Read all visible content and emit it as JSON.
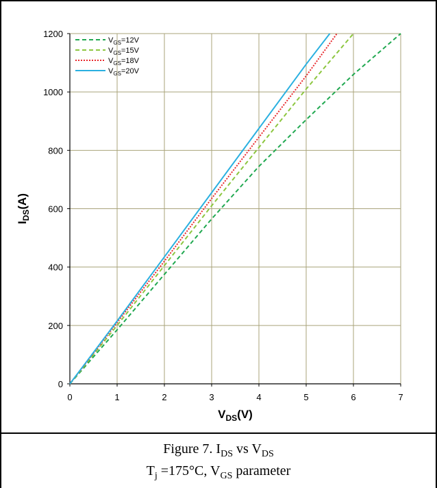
{
  "chart_data": {
    "type": "line",
    "xlabel": {
      "main": "V",
      "sub": "DS",
      "unit": "(V)"
    },
    "ylabel": {
      "main": "I",
      "sub": "DS",
      "unit": "(A)"
    },
    "xlim": [
      0,
      7
    ],
    "ylim": [
      0,
      1200
    ],
    "xticks": [
      "0",
      "1",
      "2",
      "3",
      "4",
      "5",
      "6",
      "7"
    ],
    "yticks": [
      "0",
      "200",
      "400",
      "600",
      "800",
      "1000",
      "1200"
    ],
    "grid": true,
    "legend_position": "top-left",
    "series": [
      {
        "name": "V_GS=12V",
        "label_main": "V",
        "label_sub": "GS",
        "label_rest": "=12V",
        "color": "#20a850",
        "dash": "dashed",
        "x": [
          0,
          1,
          2,
          3,
          4,
          5,
          6,
          7
        ],
        "y": [
          0,
          185,
          375,
          565,
          745,
          905,
          1060,
          1200
        ]
      },
      {
        "name": "V_GS=15V",
        "label_main": "V",
        "label_sub": "GS",
        "label_rest": "=15V",
        "color": "#8cc63f",
        "dash": "dashed",
        "x": [
          0,
          1,
          2,
          3,
          4,
          5,
          6
        ],
        "y": [
          0,
          200,
          405,
          610,
          810,
          1010,
          1200
        ]
      },
      {
        "name": "V_GS=18V",
        "label_main": "V",
        "label_sub": "GS",
        "label_rest": "=18V",
        "color": "#e8262a",
        "dash": "dotted",
        "x": [
          0,
          1,
          2,
          3,
          4,
          5,
          5.65
        ],
        "y": [
          0,
          210,
          420,
          635,
          845,
          1055,
          1200
        ]
      },
      {
        "name": "V_GS=20V",
        "label_main": "V",
        "label_sub": "GS",
        "label_rest": "=20V",
        "color": "#2ab0e0",
        "dash": "solid",
        "x": [
          0,
          1,
          2,
          3,
          4,
          5,
          5.5
        ],
        "y": [
          0,
          215,
          435,
          655,
          875,
          1095,
          1200
        ]
      }
    ]
  },
  "caption": {
    "line1": {
      "prefix": "Figure 7. I",
      "sub1": "DS",
      "middle": " vs V",
      "sub2": "DS"
    },
    "line2": {
      "prefix": "T",
      "sub1": "j",
      "middle": " =175°C, V",
      "sub2": "GS",
      "suffix": " parameter"
    }
  }
}
